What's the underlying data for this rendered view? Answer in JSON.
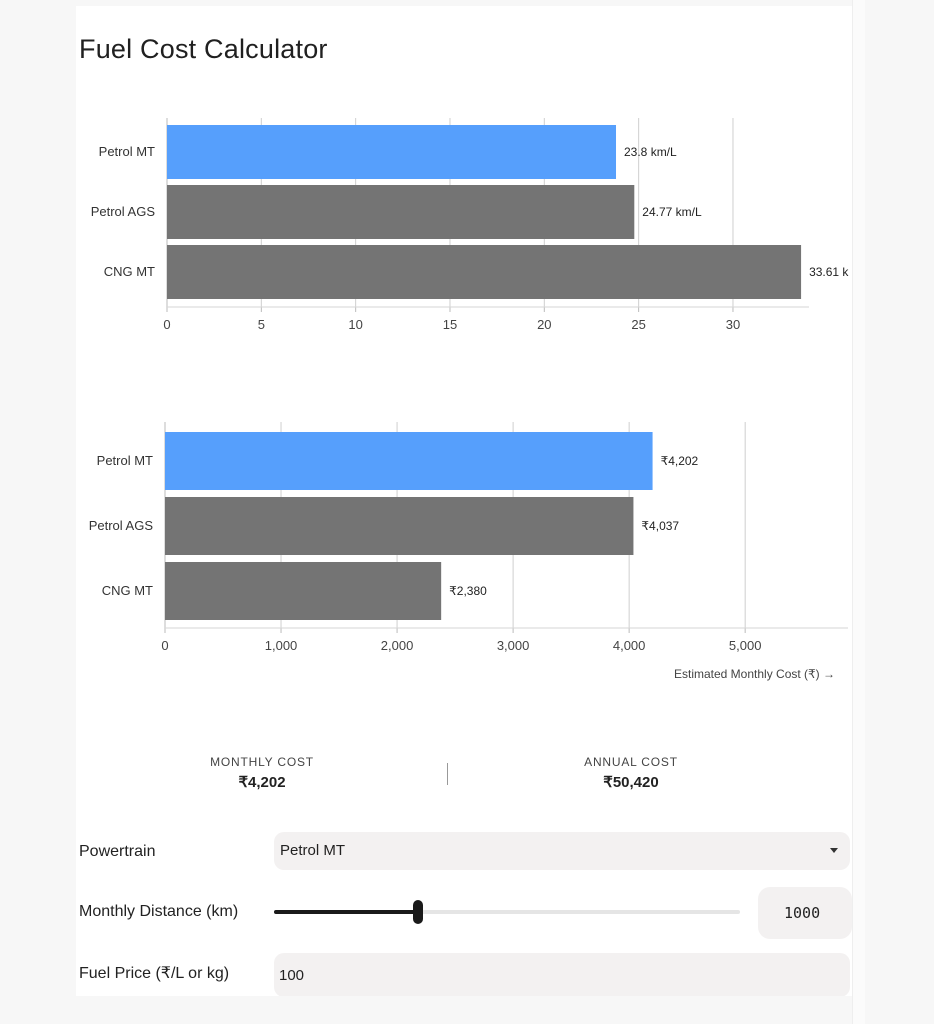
{
  "title": "Fuel Cost Calculator",
  "colors": {
    "selected": "#569ffc",
    "other": "#747474"
  },
  "chart_data": [
    {
      "type": "bar",
      "orientation": "horizontal",
      "categories": [
        "Petrol MT",
        "Petrol AGS",
        "CNG MT"
      ],
      "values": [
        23.8,
        24.77,
        33.61
      ],
      "value_labels": [
        "23.8 km/L",
        "24.77 km/L",
        "33.61 k"
      ],
      "xticks": [
        "0",
        "5",
        "10",
        "15",
        "20",
        "25",
        "30"
      ],
      "xlim": [
        0,
        33.5
      ],
      "xlabel": "",
      "ylabel": "",
      "grid": true,
      "highlighted": "Petrol MT"
    },
    {
      "type": "bar",
      "orientation": "horizontal",
      "categories": [
        "Petrol MT",
        "Petrol AGS",
        "CNG MT"
      ],
      "values": [
        4202,
        4037,
        2380
      ],
      "value_labels": [
        "₹4,202",
        "₹4,037",
        "₹2,380"
      ],
      "xticks": [
        "0",
        "1,000",
        "2,000",
        "3,000",
        "4,000",
        "5,000"
      ],
      "xlim": [
        0,
        5800
      ],
      "xlabel": "Estimated Monthly Cost (₹) →",
      "ylabel": "",
      "grid": true,
      "highlighted": "Petrol MT"
    }
  ],
  "summary": {
    "monthly_label": "MONTHLY COST",
    "monthly_value": "₹4,202",
    "annual_label": "ANNUAL COST",
    "annual_value": "₹50,420"
  },
  "form": {
    "powertrain_label": "Powertrain",
    "powertrain_value": "Petrol MT",
    "distance_label": "Monthly Distance (km)",
    "distance_value": "1000",
    "distance_fraction": 0.31,
    "price_label": "Fuel Price (₹/L or kg)",
    "price_value": "100"
  }
}
